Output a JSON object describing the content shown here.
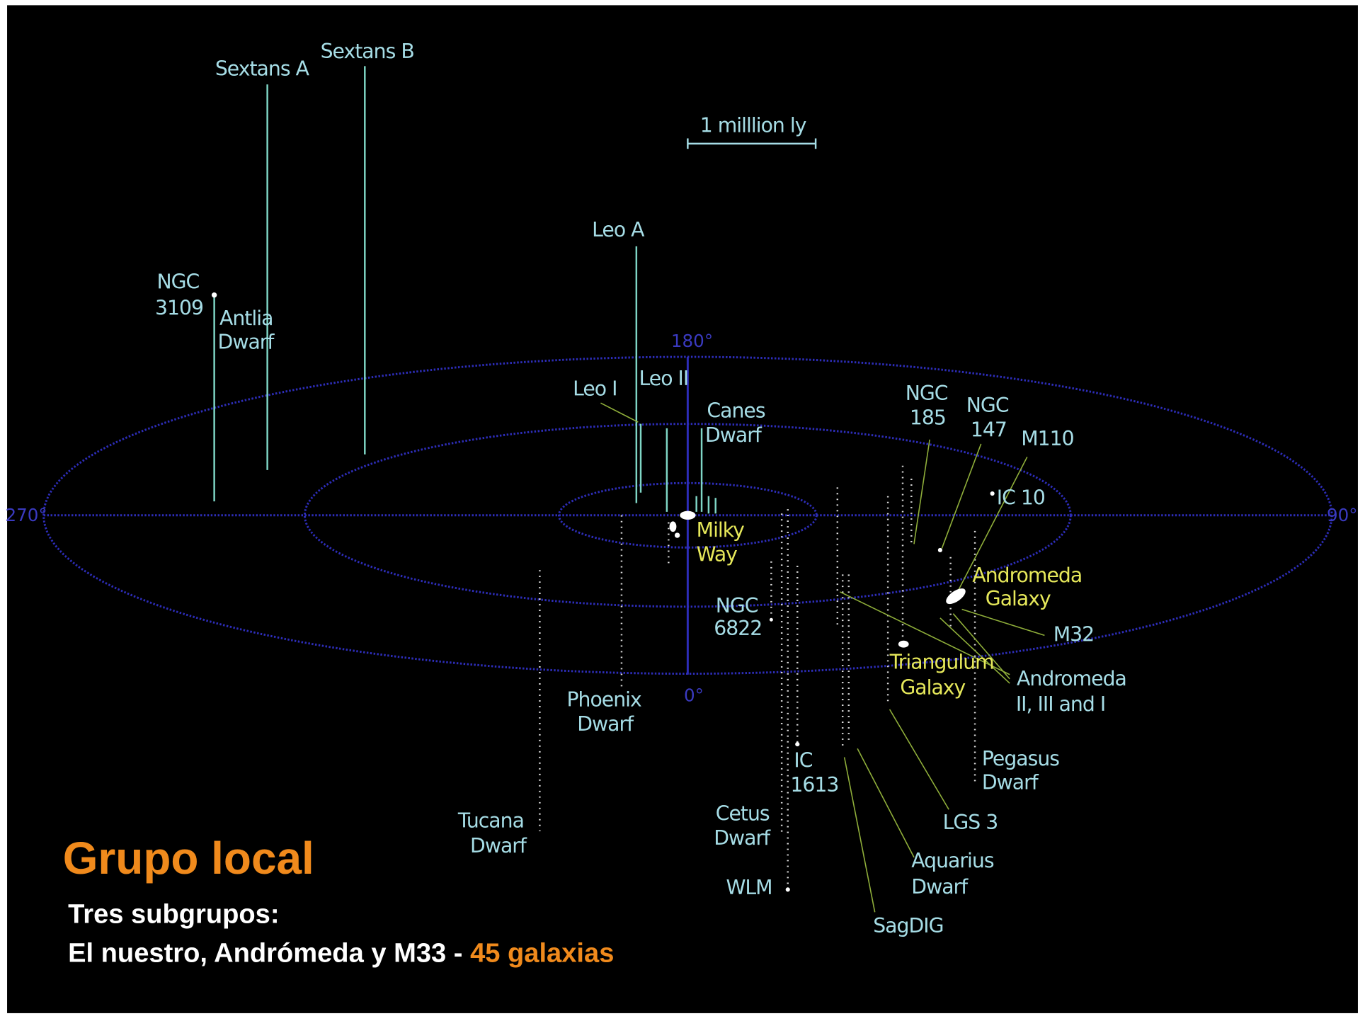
{
  "title": "Grupo local",
  "subtitle": {
    "line1": "Tres subgrupos:",
    "line2": "El nuestro, Andrómeda y M33 - ",
    "highlight": "45 galaxias"
  },
  "scale_bar": "1 milllion ly",
  "degrees": {
    "top": "180°",
    "left": "270°",
    "right": "90°",
    "bottom": "0°"
  },
  "galaxies": [
    {
      "lines": [
        "Sextans A"
      ]
    },
    {
      "lines": [
        "Sextans B"
      ]
    },
    {
      "lines": [
        "NGC",
        "3109"
      ]
    },
    {
      "lines": [
        "Antlia",
        "Dwarf"
      ]
    },
    {
      "lines": [
        "Leo A"
      ]
    },
    {
      "lines": [
        "Leo I"
      ]
    },
    {
      "lines": [
        "Leo II"
      ]
    },
    {
      "lines": [
        "Canes",
        "Dwarf"
      ]
    },
    {
      "lines": [
        "Milky",
        "Way"
      ]
    },
    {
      "lines": [
        "NGC",
        "185"
      ]
    },
    {
      "lines": [
        "NGC",
        "147"
      ]
    },
    {
      "lines": [
        "M110"
      ]
    },
    {
      "lines": [
        "IC 10"
      ]
    },
    {
      "lines": [
        "Andromeda",
        "Galaxy"
      ]
    },
    {
      "lines": [
        "NGC",
        "6822"
      ]
    },
    {
      "lines": [
        "M32"
      ]
    },
    {
      "lines": [
        "Triangulum",
        "Galaxy"
      ]
    },
    {
      "lines": [
        "Andromeda",
        "II, III and I"
      ]
    },
    {
      "lines": [
        "Phoenix",
        "Dwarf"
      ]
    },
    {
      "lines": [
        "Pegasus",
        "Dwarf"
      ]
    },
    {
      "lines": [
        "IC",
        "1613"
      ]
    },
    {
      "lines": [
        "LGS 3"
      ]
    },
    {
      "lines": [
        "Tucana",
        "Dwarf"
      ]
    },
    {
      "lines": [
        "Cetus",
        "Dwarf"
      ]
    },
    {
      "lines": [
        "Aquarius",
        "Dwarf"
      ]
    },
    {
      "lines": [
        "WLM"
      ]
    },
    {
      "lines": [
        "SagDIG"
      ]
    }
  ]
}
